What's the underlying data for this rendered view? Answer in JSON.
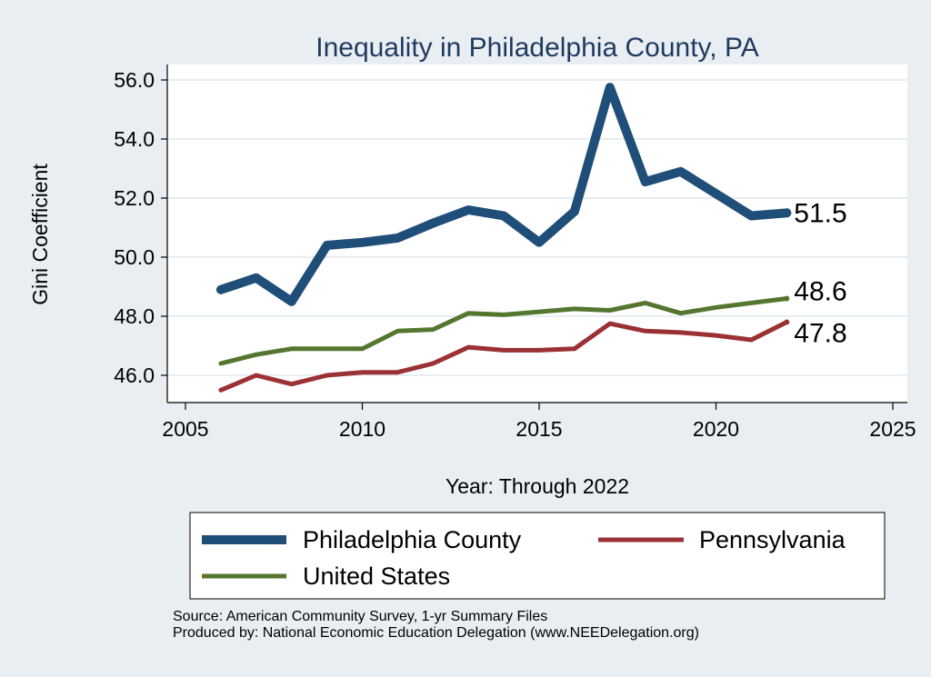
{
  "chart_data": {
    "type": "line",
    "title": "Inequality in Philadelphia County, PA",
    "xlabel": "Year: Through 2022",
    "ylabel": "Gini Coefficient",
    "xlim": [
      2005,
      2025
    ],
    "ylim": [
      45,
      57
    ],
    "xticks": [
      2005,
      2010,
      2015,
      2020,
      2025
    ],
    "yticks": [
      46.0,
      48.0,
      50.0,
      52.0,
      54.0,
      56.0
    ],
    "ytick_labels": [
      "46.0",
      "48.0",
      "50.0",
      "52.0",
      "54.0",
      "56.0"
    ],
    "grid": true,
    "legend_position": "bottom",
    "x": [
      2006,
      2007,
      2008,
      2009,
      2010,
      2011,
      2012,
      2013,
      2014,
      2015,
      2016,
      2017,
      2018,
      2019,
      2020,
      2021,
      2022
    ],
    "series": [
      {
        "name": "Philadelphia County",
        "color": "#1f4e79",
        "end_label": "51.5",
        "values": [
          48.9,
          49.3,
          48.5,
          50.4,
          50.5,
          50.65,
          51.15,
          51.6,
          51.4,
          50.5,
          51.55,
          55.75,
          52.55,
          52.9,
          52.15,
          51.4,
          51.5
        ]
      },
      {
        "name": "Pennsylvania",
        "color": "#9b3135",
        "end_label": "47.8",
        "values": [
          45.5,
          46.0,
          45.7,
          46.0,
          46.1,
          46.1,
          46.4,
          46.95,
          46.85,
          46.85,
          46.9,
          47.75,
          47.5,
          47.45,
          47.35,
          47.2,
          47.8
        ]
      },
      {
        "name": "United States",
        "color": "#55762f",
        "end_label": "48.6",
        "values": [
          46.4,
          46.7,
          46.9,
          46.9,
          46.9,
          47.5,
          47.55,
          48.1,
          48.05,
          48.15,
          48.25,
          48.2,
          48.45,
          48.1,
          48.3,
          48.45,
          48.6
        ]
      }
    ]
  },
  "source_line": "Source: American Community Survey, 1-yr Summary Files",
  "produced_line": "Produced by: National Economic Education Delegation (www.NEEDelegation.org)"
}
